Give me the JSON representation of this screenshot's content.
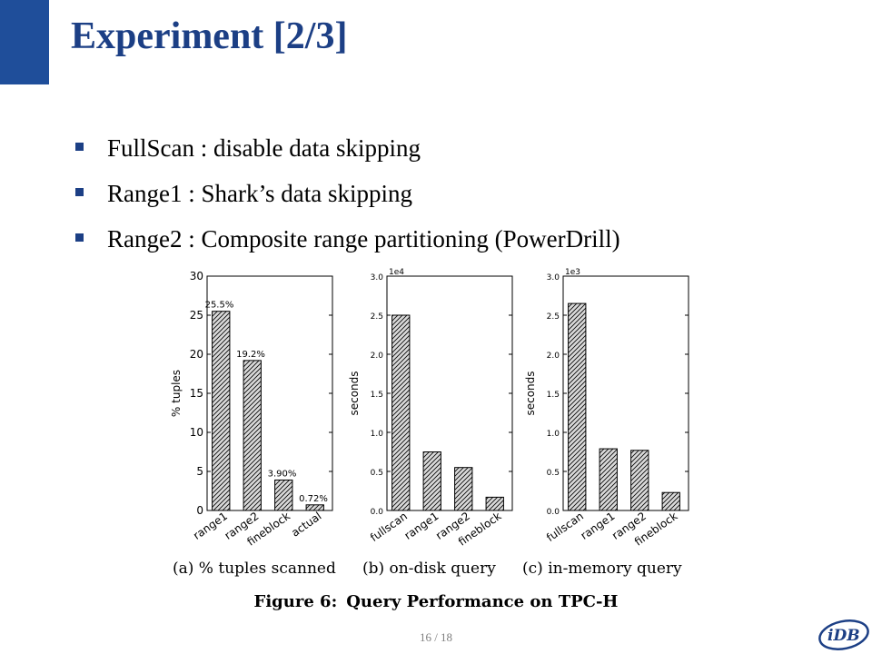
{
  "slide": {
    "title": "Experiment [2/3]",
    "bullets": [
      "FullScan : disable data skipping",
      "Range1  : Shark’s data skipping",
      "Range2  : Composite range partitioning (PowerDrill)"
    ],
    "figure_label": "Figure 6:",
    "figure_title": "Query Performance on TPC-H",
    "page": "16 / 18",
    "logo_text": "iDB"
  },
  "colors": {
    "accent": "#1f4e9a",
    "title": "#1c3f85",
    "bar_fill": "#d9d9d9",
    "hatch": "#000000"
  },
  "chart_data": [
    {
      "type": "bar",
      "caption": "(a) % tuples scanned",
      "categories": [
        "range1",
        "range2",
        "fineblock",
        "actual"
      ],
      "values": [
        25.5,
        19.2,
        3.9,
        0.72
      ],
      "data_labels": [
        "25.5%",
        "19.2%",
        "3.90%",
        "0.72%"
      ],
      "ylabel": "% tuples",
      "ylim": [
        0,
        30
      ],
      "yticks": [
        0,
        5,
        10,
        15,
        20,
        25,
        30
      ],
      "ytick_labels": [
        "0",
        "5",
        "10",
        "15",
        "20",
        "25",
        "30"
      ],
      "grid": false
    },
    {
      "type": "bar",
      "caption": "(b) on-disk query",
      "categories": [
        "fullscan",
        "range1",
        "range2",
        "fineblock"
      ],
      "values": [
        25000,
        7500,
        5500,
        1700
      ],
      "ylabel": "seconds",
      "scale_label": "1e4",
      "ylim": [
        0,
        30000
      ],
      "yticks": [
        0,
        5000,
        10000,
        15000,
        20000,
        25000,
        30000
      ],
      "ytick_labels": [
        "0.0",
        "0.5",
        "1.0",
        "1.5",
        "2.0",
        "2.5",
        "3.0"
      ],
      "grid": false
    },
    {
      "type": "bar",
      "caption": "(c) in-memory query",
      "categories": [
        "fullscan",
        "range1",
        "range2",
        "fineblock"
      ],
      "values": [
        2650,
        790,
        770,
        230
      ],
      "ylabel": "seconds",
      "scale_label": "1e3",
      "ylim": [
        0,
        3000
      ],
      "yticks": [
        0,
        500,
        1000,
        1500,
        2000,
        2500,
        3000
      ],
      "ytick_labels": [
        "0.0",
        "0.5",
        "1.0",
        "1.5",
        "2.0",
        "2.5",
        "3.0"
      ],
      "grid": false
    }
  ]
}
